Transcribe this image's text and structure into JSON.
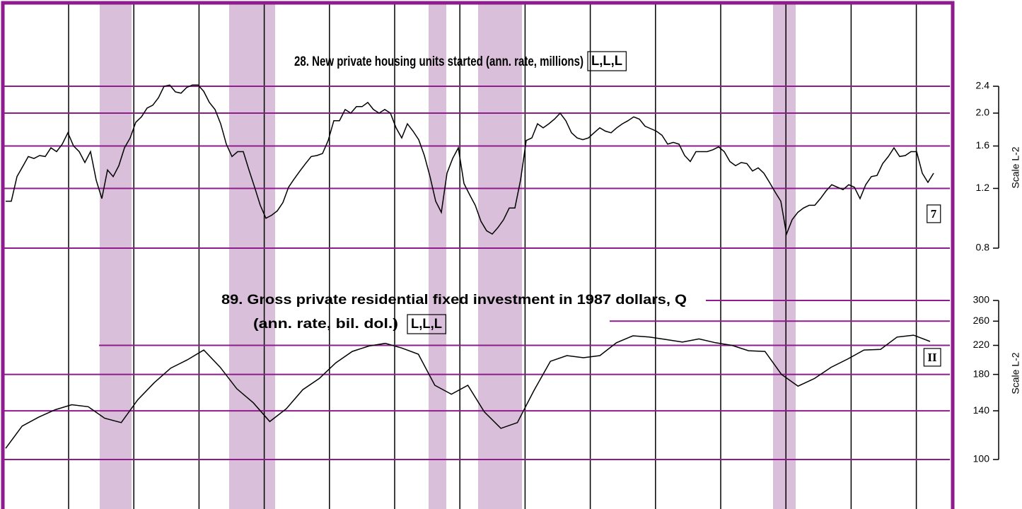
{
  "chart_data": [
    {
      "type": "line",
      "title": "28. New private housing units started (ann. rate, millions)",
      "annotations": [
        "L,L,L",
        "7"
      ],
      "y_label": "Scale L-2",
      "log_scale": true,
      "ylim": [
        0.8,
        2.4
      ],
      "yticks": [
        0.8,
        1.2,
        1.6,
        {
          "value": 2,
          "label": "2.0"
        },
        2.4
      ],
      "grid": true,
      "grid_color": "#8e1c8c",
      "color": "#000000",
      "values": [
        1.1,
        1.1,
        1.3,
        1.39,
        1.49,
        1.47,
        1.5,
        1.49,
        1.58,
        1.54,
        1.62,
        1.75,
        1.6,
        1.54,
        1.43,
        1.54,
        1.27,
        1.12,
        1.36,
        1.3,
        1.4,
        1.58,
        1.69,
        1.88,
        1.95,
        2.07,
        2.11,
        2.22,
        2.4,
        2.42,
        2.31,
        2.29,
        2.38,
        2.42,
        2.42,
        2.32,
        2.15,
        2.05,
        1.86,
        1.62,
        1.49,
        1.54,
        1.54,
        1.36,
        1.21,
        1.07,
        0.98,
        1.0,
        1.03,
        1.09,
        1.21,
        1.28,
        1.35,
        1.42,
        1.49,
        1.5,
        1.52,
        1.66,
        1.9,
        1.9,
        2.05,
        2.0,
        2.09,
        2.09,
        2.15,
        2.05,
        2.0,
        2.05,
        2.0,
        1.81,
        1.69,
        1.86,
        1.77,
        1.67,
        1.5,
        1.3,
        1.1,
        1.02,
        1.33,
        1.47,
        1.58,
        1.24,
        1.15,
        1.07,
        0.96,
        0.9,
        0.88,
        0.92,
        0.97,
        1.05,
        1.05,
        1.27,
        1.66,
        1.69,
        1.86,
        1.81,
        1.86,
        1.92,
        2.0,
        1.9,
        1.75,
        1.69,
        1.67,
        1.69,
        1.75,
        1.81,
        1.77,
        1.75,
        1.81,
        1.86,
        1.9,
        1.95,
        1.92,
        1.83,
        1.8,
        1.77,
        1.72,
        1.62,
        1.64,
        1.62,
        1.5,
        1.44,
        1.54,
        1.54,
        1.54,
        1.56,
        1.59,
        1.54,
        1.44,
        1.4,
        1.43,
        1.42,
        1.35,
        1.38,
        1.33,
        1.25,
        1.17,
        1.1,
        0.88,
        0.97,
        1.02,
        1.05,
        1.07,
        1.07,
        1.12,
        1.18,
        1.23,
        1.21,
        1.19,
        1.23,
        1.21,
        1.12,
        1.23,
        1.3,
        1.31,
        1.42,
        1.49,
        1.58,
        1.49,
        1.5,
        1.54,
        1.54,
        1.33,
        1.25,
        1.33
      ]
    },
    {
      "type": "line",
      "title": "89. Gross private residential fixed investment in 1987 dollars, Q",
      "subtitle": "(ann. rate, bil. dol.)",
      "annotations": [
        "L,L,L",
        "II"
      ],
      "y_label": "Scale L-2",
      "log_scale": true,
      "ylim": [
        100,
        300
      ],
      "yticks": [
        100,
        140,
        180,
        220,
        260,
        300
      ],
      "grid": true,
      "grid_color": "#8e1c8c",
      "color": "#000000",
      "values": [
        108,
        126,
        134,
        141,
        146,
        144,
        133,
        129,
        151,
        170,
        188,
        199,
        213,
        189,
        163,
        148,
        130,
        142,
        162,
        175,
        195,
        211,
        219,
        223,
        216,
        207,
        167,
        157,
        167,
        139,
        124,
        129,
        161,
        197,
        205,
        202,
        205,
        224,
        235,
        233,
        229,
        225,
        230,
        224,
        220,
        212,
        211,
        180,
        166,
        175,
        189,
        200,
        213,
        214,
        233,
        236,
        226
      ]
    }
  ]
}
